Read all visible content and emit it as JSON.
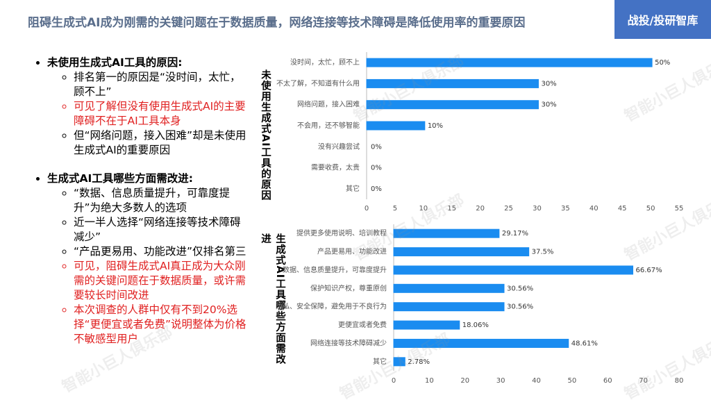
{
  "header": {
    "title": "阻碍生成式AI成为刚需的关键问题在于数据质量，网络连接等技术障碍是降低使用率的重要原因",
    "brand": "战投/投研智库"
  },
  "watermark": "智能小巨人俱乐部",
  "bullets": [
    {
      "heading": "未使用生成式AI工具的原因:",
      "items": [
        {
          "text": "排名第一的原因是“没时间，太忙，顾不上”",
          "color": "#000000"
        },
        {
          "text": "可见了解但没有使用生成式AI的主要障碍不在于AI工具本身",
          "color": "#e02020"
        },
        {
          "text": "但“网络问题，接入困难”却是未使用生成式AI的重要原因",
          "color": "#000000"
        }
      ]
    },
    {
      "heading": "生成式AI工具哪些方面需改进:",
      "items": [
        {
          "text": "“数据、信息质量提升，可靠度提升”为绝大多数人的选项",
          "color": "#000000"
        },
        {
          "text": "近一半人选择“网络连接等技术障碍减少”",
          "color": "#000000"
        },
        {
          "text": "“产品更易用、功能改进”仅排名第三",
          "color": "#000000"
        },
        {
          "text": "可见，阻碍生成式AI真正成为大众刚需的关键问题在于数据质量，或许需要较长时间改进",
          "color": "#e02020"
        },
        {
          "text": "本次调查的人群中仅有不到20%选择“更便宜或者免费”说明整体为价格不敏感型用户",
          "color": "#e02020"
        }
      ]
    }
  ],
  "chart_data": [
    {
      "type": "bar",
      "orientation": "horizontal",
      "title": "未使用生成式AI工具的原因",
      "color": "#1a8cf0",
      "categories": [
        "没时间，太忙，顾不上",
        "不太了解，不知道有什么用",
        "网络问题，接入困难",
        "不会用，还不够智能",
        "没有兴趣尝试",
        "需要收费，太贵",
        "其它"
      ],
      "values": [
        50,
        30,
        30,
        10,
        0,
        0,
        0
      ],
      "value_labels": [
        "50%",
        "30%",
        "30%",
        "10%",
        "0%",
        "0%",
        "0%"
      ],
      "xlim": [
        0,
        55
      ],
      "xticks": [
        0,
        5,
        10,
        15,
        20,
        25,
        30,
        35,
        40,
        45,
        50,
        55
      ]
    },
    {
      "type": "bar",
      "orientation": "horizontal",
      "title": "生成式AI工具哪些方面需改进",
      "color": "#1a8cf0",
      "categories": [
        "提供更多使用说明、培训教程",
        "产品更易用、功能改进",
        "数据、信息质量提升，可靠度提升",
        "保护知识产权，尊重原创",
        "隐私、安全保障，避免用于不良行为",
        "更便宜或者免费",
        "网络连接等技术障碍减少",
        "其它"
      ],
      "values": [
        29.17,
        37.5,
        66.67,
        30.56,
        30.56,
        18.06,
        48.61,
        2.78
      ],
      "value_labels": [
        "29.17%",
        "37.5%",
        "66.67%",
        "30.56%",
        "30.56%",
        "18.06%",
        "48.61%",
        "2.78%"
      ],
      "xlim": [
        0,
        80
      ],
      "xticks": [
        0,
        10,
        20,
        30,
        40,
        50,
        60,
        70,
        80
      ]
    }
  ]
}
